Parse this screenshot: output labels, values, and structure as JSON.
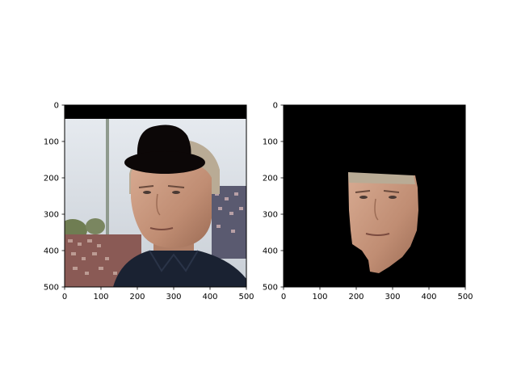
{
  "chart_data": [
    {
      "type": "image",
      "axes": {
        "x": {
          "lim": [
            0,
            500
          ],
          "ticks": [
            0,
            100,
            200,
            300,
            400,
            500
          ],
          "tick_labels": [
            "0",
            "100",
            "200",
            "300",
            "400",
            "500"
          ]
        },
        "y": {
          "lim": [
            0,
            500
          ],
          "inverted": true,
          "ticks": [
            0,
            100,
            200,
            300,
            400,
            500
          ],
          "tick_labels": [
            "0",
            "100",
            "200",
            "300",
            "400",
            "500"
          ]
        }
      },
      "grid": false,
      "content": "photo of a man's face with a black bowler hat overlaid and a black band along the top edge"
    },
    {
      "type": "image",
      "axes": {
        "x": {
          "lim": [
            0,
            500
          ],
          "ticks": [
            0,
            100,
            200,
            300,
            400,
            500
          ],
          "tick_labels": [
            "0",
            "100",
            "200",
            "300",
            "400",
            "500"
          ]
        },
        "y": {
          "lim": [
            0,
            500
          ],
          "inverted": true,
          "ticks": [
            0,
            100,
            200,
            300,
            400,
            500
          ],
          "tick_labels": [
            "0",
            "100",
            "200",
            "300",
            "400",
            "500"
          ]
        }
      },
      "grid": false,
      "content": "segmented face region on a black background"
    }
  ],
  "colors": {
    "frame": "#000000",
    "mask_background": "#000000",
    "hat": "#0c0707",
    "sky": "#dfe5ec",
    "skin": "#c99a82",
    "shirt": "#1a2232"
  }
}
